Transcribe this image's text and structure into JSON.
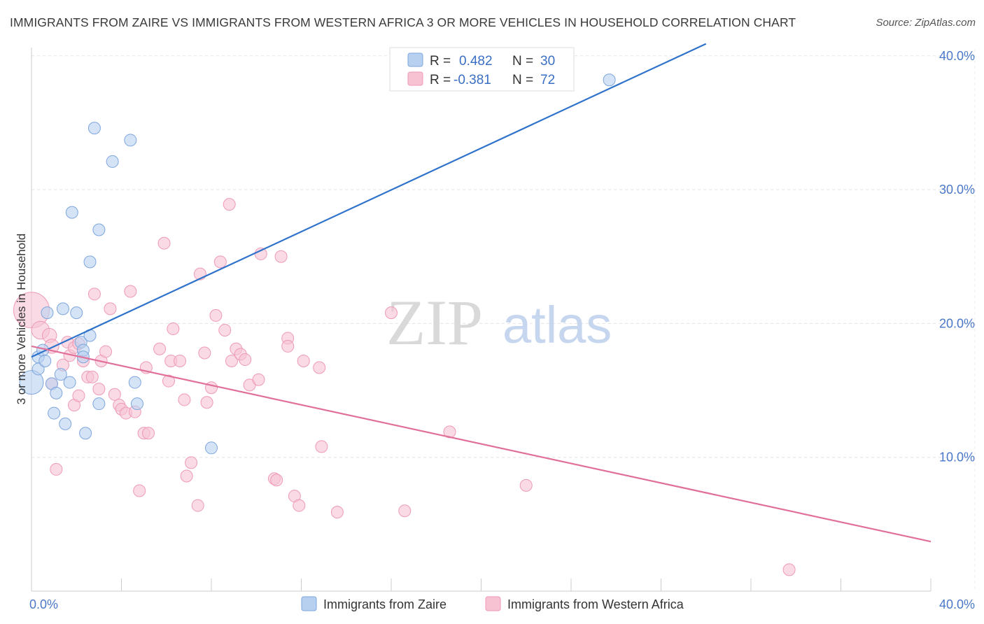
{
  "title": "IMMIGRANTS FROM ZAIRE VS IMMIGRANTS FROM WESTERN AFRICA 3 OR MORE VEHICLES IN HOUSEHOLD CORRELATION CHART",
  "source": "Source: ZipAtlas.com",
  "watermark": {
    "zip": "ZIP",
    "atlas": "atlas"
  },
  "legend_box": [
    {
      "r_label": "R =",
      "r_value": "0.482",
      "n_label": "N =",
      "n_value": "30"
    },
    {
      "r_label": "R =",
      "r_value": "-0.381",
      "n_label": "N =",
      "n_value": "72"
    }
  ],
  "colors": {
    "zaire_fill": "#b8d0f0",
    "zaire_stroke": "#7ea6dc",
    "zaire_line": "#2f72cc",
    "wafrica_fill": "#f7c3d3",
    "wafrica_stroke": "#ee9ab5",
    "wafrica_line": "#e0709a",
    "grid": "#e3e3e3",
    "tick_text": "#4a78c8"
  },
  "chart_data": {
    "type": "scatter",
    "title": "IMMIGRANTS FROM ZAIRE VS IMMIGRANTS FROM WESTERN AFRICA 3 OR MORE VEHICLES IN HOUSEHOLD CORRELATION CHART",
    "xlabel": "",
    "ylabel": "3 or more Vehicles in Household",
    "xlim": [
      0,
      40
    ],
    "ylim": [
      0,
      40
    ],
    "x_tick_labels": [
      "0.0%",
      "40.0%"
    ],
    "y_ticks": [
      10,
      20,
      30,
      40
    ],
    "y_tick_labels": [
      "10.0%",
      "20.0%",
      "30.0%",
      "40.0%"
    ],
    "grid": true,
    "legend_position": "bottom",
    "series": [
      {
        "name": "Immigrants from Zaire",
        "R": 0.482,
        "N": 30,
        "trend": {
          "x": [
            0,
            30.0
          ],
          "y": [
            17.5,
            40.9
          ]
        },
        "points": [
          {
            "x": 0.0,
            "y": 15.6,
            "s": 2
          },
          {
            "x": 0.3,
            "y": 16.6,
            "s": 1
          },
          {
            "x": 0.3,
            "y": 17.5,
            "s": 1
          },
          {
            "x": 0.5,
            "y": 18.0,
            "s": 1
          },
          {
            "x": 0.6,
            "y": 17.2,
            "s": 1
          },
          {
            "x": 0.7,
            "y": 20.8,
            "s": 1
          },
          {
            "x": 0.9,
            "y": 15.5,
            "s": 1
          },
          {
            "x": 1.0,
            "y": 13.3,
            "s": 1
          },
          {
            "x": 1.1,
            "y": 14.8,
            "s": 1
          },
          {
            "x": 1.3,
            "y": 16.2,
            "s": 1
          },
          {
            "x": 1.4,
            "y": 21.1,
            "s": 1
          },
          {
            "x": 1.5,
            "y": 12.5,
            "s": 1
          },
          {
            "x": 1.7,
            "y": 15.6,
            "s": 1
          },
          {
            "x": 1.8,
            "y": 28.3,
            "s": 1
          },
          {
            "x": 2.0,
            "y": 20.8,
            "s": 1
          },
          {
            "x": 2.2,
            "y": 18.6,
            "s": 1
          },
          {
            "x": 2.3,
            "y": 18.0,
            "s": 1
          },
          {
            "x": 2.3,
            "y": 17.5,
            "s": 1
          },
          {
            "x": 2.4,
            "y": 11.8,
            "s": 1
          },
          {
            "x": 2.6,
            "y": 19.1,
            "s": 1
          },
          {
            "x": 2.6,
            "y": 24.6,
            "s": 1
          },
          {
            "x": 2.8,
            "y": 34.6,
            "s": 1
          },
          {
            "x": 3.0,
            "y": 14.0,
            "s": 1
          },
          {
            "x": 3.0,
            "y": 27.0,
            "s": 1
          },
          {
            "x": 3.6,
            "y": 32.1,
            "s": 1
          },
          {
            "x": 4.4,
            "y": 33.7,
            "s": 1
          },
          {
            "x": 4.6,
            "y": 15.6,
            "s": 1
          },
          {
            "x": 4.7,
            "y": 14.0,
            "s": 1
          },
          {
            "x": 8.0,
            "y": 10.7,
            "s": 1
          },
          {
            "x": 25.7,
            "y": 38.2,
            "s": 1
          }
        ]
      },
      {
        "name": "Immigrants from Western Africa",
        "R": -0.381,
        "N": 72,
        "trend": {
          "x": [
            0,
            40.0
          ],
          "y": [
            18.3,
            3.7
          ]
        },
        "points": [
          {
            "x": 0.0,
            "y": 21.0,
            "s": 3
          },
          {
            "x": 0.4,
            "y": 19.5,
            "s": 1.5
          },
          {
            "x": 0.8,
            "y": 19.1,
            "s": 1.2
          },
          {
            "x": 0.9,
            "y": 18.3,
            "s": 1.2
          },
          {
            "x": 0.9,
            "y": 15.5,
            "s": 1
          },
          {
            "x": 1.1,
            "y": 9.1,
            "s": 1
          },
          {
            "x": 1.4,
            "y": 16.9,
            "s": 1
          },
          {
            "x": 1.6,
            "y": 18.6,
            "s": 1
          },
          {
            "x": 1.7,
            "y": 17.6,
            "s": 1
          },
          {
            "x": 1.9,
            "y": 18.2,
            "s": 1
          },
          {
            "x": 1.9,
            "y": 13.9,
            "s": 1
          },
          {
            "x": 2.1,
            "y": 18.5,
            "s": 1
          },
          {
            "x": 2.1,
            "y": 14.6,
            "s": 1
          },
          {
            "x": 2.3,
            "y": 17.2,
            "s": 1
          },
          {
            "x": 2.5,
            "y": 16.0,
            "s": 1
          },
          {
            "x": 2.7,
            "y": 16.0,
            "s": 1
          },
          {
            "x": 2.8,
            "y": 22.2,
            "s": 1
          },
          {
            "x": 3.0,
            "y": 15.1,
            "s": 1
          },
          {
            "x": 3.1,
            "y": 17.2,
            "s": 1
          },
          {
            "x": 3.3,
            "y": 17.9,
            "s": 1
          },
          {
            "x": 3.5,
            "y": 21.1,
            "s": 1
          },
          {
            "x": 3.7,
            "y": 14.7,
            "s": 1
          },
          {
            "x": 3.9,
            "y": 13.9,
            "s": 1
          },
          {
            "x": 4.0,
            "y": 13.6,
            "s": 1
          },
          {
            "x": 4.2,
            "y": 13.3,
            "s": 1
          },
          {
            "x": 4.4,
            "y": 22.4,
            "s": 1
          },
          {
            "x": 4.6,
            "y": 13.4,
            "s": 1
          },
          {
            "x": 4.8,
            "y": 7.5,
            "s": 1
          },
          {
            "x": 5.0,
            "y": 11.8,
            "s": 1
          },
          {
            "x": 5.1,
            "y": 16.7,
            "s": 1
          },
          {
            "x": 5.2,
            "y": 11.8,
            "s": 1
          },
          {
            "x": 5.7,
            "y": 18.1,
            "s": 1
          },
          {
            "x": 5.9,
            "y": 26.0,
            "s": 1
          },
          {
            "x": 6.1,
            "y": 15.7,
            "s": 1
          },
          {
            "x": 6.2,
            "y": 17.2,
            "s": 1
          },
          {
            "x": 6.3,
            "y": 19.6,
            "s": 1
          },
          {
            "x": 6.6,
            "y": 17.2,
            "s": 1
          },
          {
            "x": 6.8,
            "y": 14.3,
            "s": 1
          },
          {
            "x": 6.9,
            "y": 8.6,
            "s": 1
          },
          {
            "x": 7.1,
            "y": 9.6,
            "s": 1
          },
          {
            "x": 7.4,
            "y": 6.4,
            "s": 1
          },
          {
            "x": 7.5,
            "y": 23.7,
            "s": 1
          },
          {
            "x": 7.7,
            "y": 17.8,
            "s": 1
          },
          {
            "x": 7.8,
            "y": 14.1,
            "s": 1
          },
          {
            "x": 8.0,
            "y": 15.2,
            "s": 1
          },
          {
            "x": 8.2,
            "y": 20.6,
            "s": 1
          },
          {
            "x": 8.4,
            "y": 24.6,
            "s": 1
          },
          {
            "x": 8.6,
            "y": 19.5,
            "s": 1
          },
          {
            "x": 8.8,
            "y": 28.9,
            "s": 1
          },
          {
            "x": 8.9,
            "y": 17.2,
            "s": 1
          },
          {
            "x": 9.1,
            "y": 18.1,
            "s": 1
          },
          {
            "x": 9.3,
            "y": 17.7,
            "s": 1
          },
          {
            "x": 9.5,
            "y": 17.3,
            "s": 1
          },
          {
            "x": 9.7,
            "y": 15.4,
            "s": 1
          },
          {
            "x": 10.1,
            "y": 15.8,
            "s": 1
          },
          {
            "x": 10.2,
            "y": 25.2,
            "s": 1
          },
          {
            "x": 11.1,
            "y": 25.0,
            "s": 1
          },
          {
            "x": 10.8,
            "y": 8.4,
            "s": 1
          },
          {
            "x": 11.4,
            "y": 18.9,
            "s": 1
          },
          {
            "x": 11.4,
            "y": 18.3,
            "s": 1
          },
          {
            "x": 11.7,
            "y": 7.1,
            "s": 1
          },
          {
            "x": 11.9,
            "y": 6.4,
            "s": 1
          },
          {
            "x": 12.1,
            "y": 17.2,
            "s": 1
          },
          {
            "x": 12.8,
            "y": 16.7,
            "s": 1
          },
          {
            "x": 12.9,
            "y": 10.8,
            "s": 1
          },
          {
            "x": 13.6,
            "y": 5.9,
            "s": 1
          },
          {
            "x": 16.0,
            "y": 20.8,
            "s": 1
          },
          {
            "x": 16.6,
            "y": 6.0,
            "s": 1
          },
          {
            "x": 18.6,
            "y": 11.9,
            "s": 1
          },
          {
            "x": 22.0,
            "y": 7.9,
            "s": 1
          },
          {
            "x": 33.7,
            "y": 1.6,
            "s": 1
          },
          {
            "x": 10.9,
            "y": 8.3,
            "s": 1
          }
        ]
      }
    ]
  }
}
